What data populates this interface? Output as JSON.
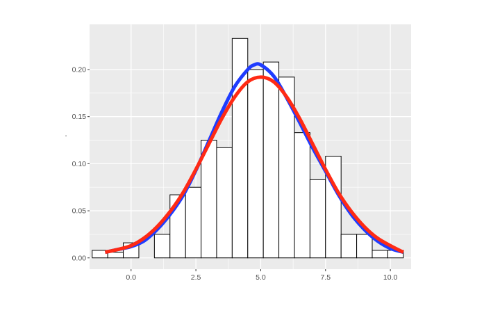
{
  "chart_data": {
    "type": "bar",
    "title": "",
    "xlabel": "",
    "ylabel": ".",
    "xlim": [
      -1.6,
      10.8
    ],
    "ylim": [
      -0.012,
      0.248
    ],
    "x_ticks": [
      0.0,
      2.5,
      5.0,
      7.5,
      10.0
    ],
    "x_tick_labels": [
      "0.0",
      "2.5",
      "5.0",
      "7.5",
      "10.0"
    ],
    "y_ticks": [
      0.0,
      0.05,
      0.1,
      0.15,
      0.2
    ],
    "y_tick_labels": [
      "0.00",
      "0.05",
      "0.10",
      "0.15",
      "0.20"
    ],
    "grid": true,
    "panel_background": "#ebebeb",
    "grid_color": "#ffffff",
    "histogram": {
      "bin_width": 0.6,
      "bins_left": [
        -1.5,
        -0.9,
        -0.3,
        0.3,
        0.9,
        1.5,
        2.1,
        2.7,
        3.3,
        3.9,
        4.5,
        5.1,
        5.7,
        6.3,
        6.9,
        7.5,
        8.1,
        8.7,
        9.3,
        9.9
      ],
      "densities": [
        0.008,
        0.006,
        0.016,
        0.0,
        0.025,
        0.067,
        0.075,
        0.125,
        0.117,
        0.233,
        0.2,
        0.208,
        0.192,
        0.133,
        0.083,
        0.108,
        0.025,
        0.025,
        0.008,
        0.008
      ],
      "fill": "#ffffff",
      "stroke": "#000000"
    },
    "series": [
      {
        "color": "#1f3cff",
        "type": "line",
        "x": [
          -1.0,
          -0.5,
          0.0,
          0.5,
          1.0,
          1.5,
          2.0,
          2.5,
          3.0,
          3.5,
          4.0,
          4.5,
          4.75,
          5.0,
          5.5,
          6.0,
          6.5,
          7.0,
          7.5,
          8.0,
          8.5,
          9.0,
          9.5,
          10.0,
          10.5
        ],
        "values": [
          0.006,
          0.009,
          0.012,
          0.018,
          0.03,
          0.046,
          0.066,
          0.093,
          0.124,
          0.155,
          0.182,
          0.2,
          0.205,
          0.205,
          0.193,
          0.17,
          0.144,
          0.117,
          0.092,
          0.067,
          0.046,
          0.03,
          0.018,
          0.01,
          0.006
        ]
      },
      {
        "color": "#ff2a14",
        "type": "line",
        "x": [
          -1.0,
          -0.5,
          0.0,
          0.5,
          1.0,
          1.5,
          2.0,
          2.5,
          3.0,
          3.5,
          4.0,
          4.5,
          5.0,
          5.5,
          6.0,
          6.5,
          7.0,
          7.5,
          8.0,
          8.5,
          9.0,
          9.5,
          10.0,
          10.5
        ],
        "values": [
          0.006,
          0.009,
          0.013,
          0.021,
          0.033,
          0.049,
          0.069,
          0.094,
          0.121,
          0.148,
          0.171,
          0.187,
          0.192,
          0.187,
          0.171,
          0.148,
          0.121,
          0.094,
          0.069,
          0.049,
          0.033,
          0.021,
          0.013,
          0.006
        ]
      }
    ]
  }
}
